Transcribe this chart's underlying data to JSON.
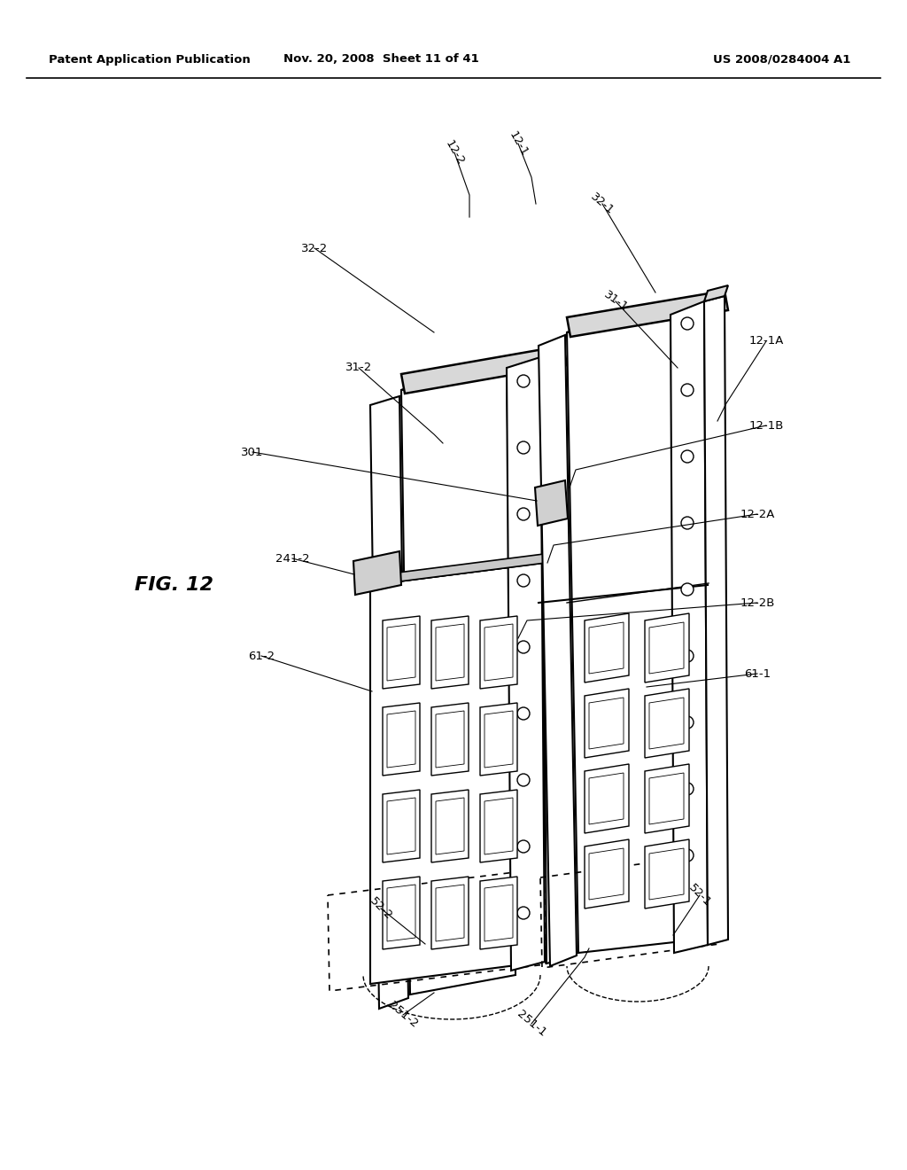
{
  "header_left": "Patent Application Publication",
  "header_mid": "Nov. 20, 2008  Sheet 11 of 41",
  "header_right": "US 2008/0284004 A1",
  "fig_label": "FIG. 12",
  "background_color": "#ffffff",
  "line_color": "#000000",
  "lw_main": 1.5,
  "lw_thick": 2.0,
  "lw_thin": 0.9
}
